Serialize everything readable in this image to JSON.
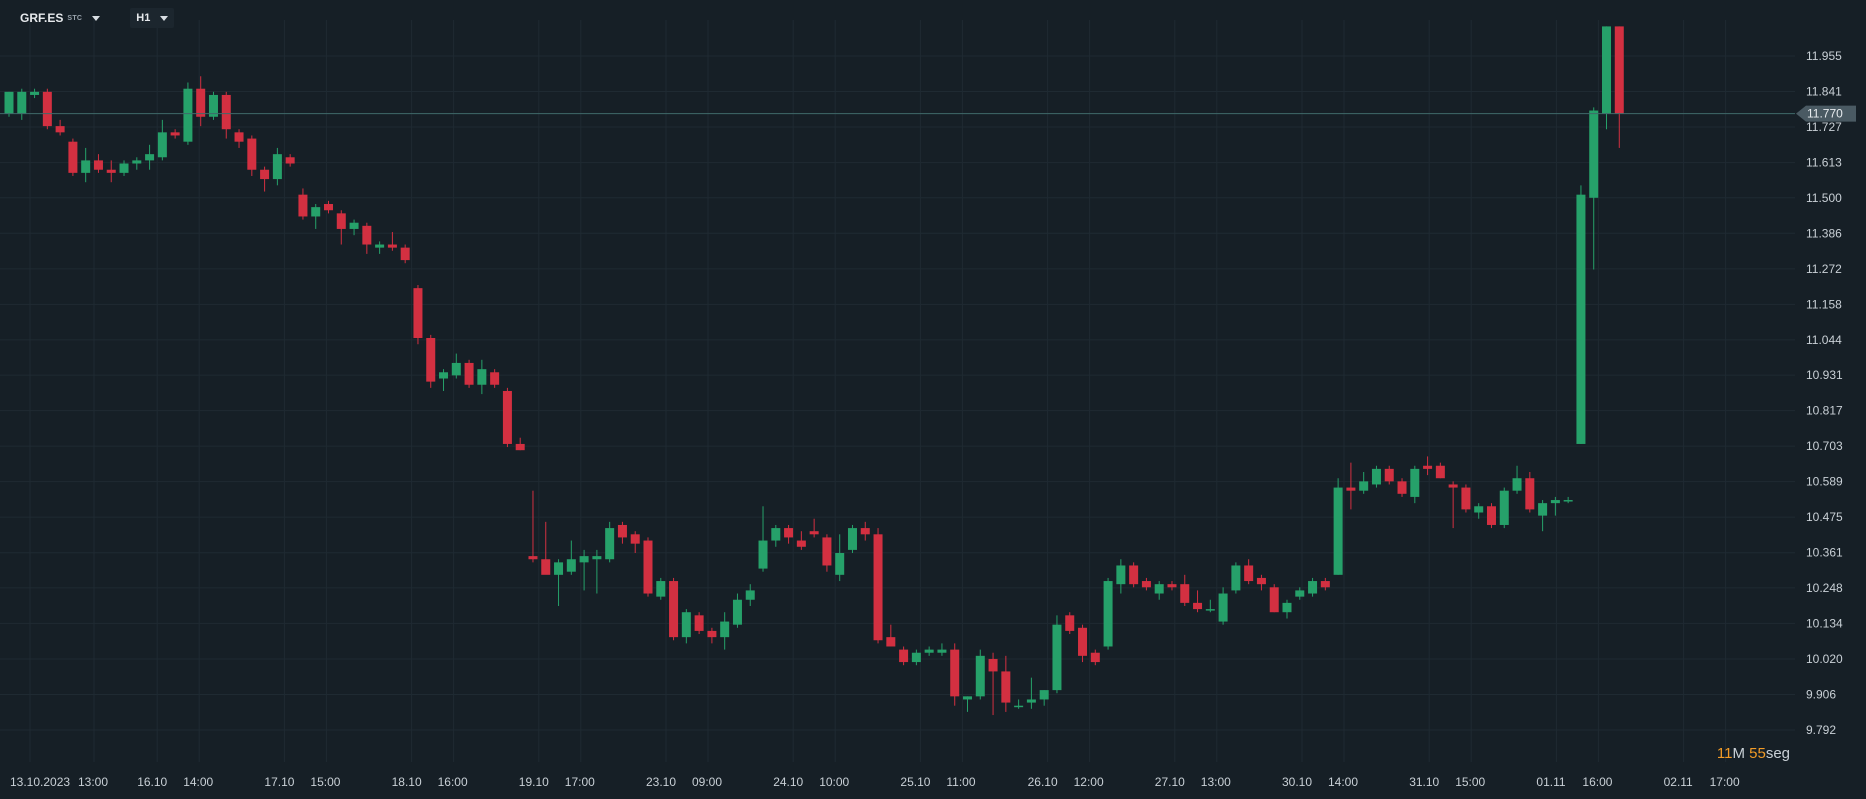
{
  "toolbar": {
    "symbol": "GRF.ES",
    "symbol_sub": "STC",
    "timeframe": "H1"
  },
  "timer": {
    "min": "11",
    "min_unit": "M",
    "sec": "55",
    "sec_unit": "seg"
  },
  "colors": {
    "up": "#26a16a",
    "down": "#d33041",
    "bg": "#161f26",
    "grid": "#1f2a32",
    "axis_text": "#c9d0d6"
  },
  "chart_data": {
    "type": "candlestick",
    "title": "",
    "xlabel": "",
    "ylabel": "",
    "ylim": [
      9.792,
      12.069
    ],
    "y_ticks": [
      "11.955",
      "11.841",
      "11.727",
      "11.613",
      "11.500",
      "11.386",
      "11.272",
      "11.158",
      "11.044",
      "10.931",
      "10.817",
      "10.703",
      "10.589",
      "10.475",
      "10.361",
      "10.248",
      "10.134",
      "10.020",
      "9.906",
      "9.792"
    ],
    "x_labels": [
      "13.10.2023",
      "13:00",
      "16.10",
      "14:00",
      "17.10",
      "15:00",
      "18.10",
      "16:00",
      "19.10",
      "17:00",
      "23.10",
      "09:00",
      "24.10",
      "10:00",
      "25.10",
      "11:00",
      "26.10",
      "12:00",
      "27.10",
      "13:00",
      "30.10",
      "14:00",
      "31.10",
      "15:00",
      "01.11",
      "16:00",
      "02.11",
      "17:00"
    ],
    "current_price": "11.770",
    "candles": [
      {
        "o": 11.77,
        "h": 11.84,
        "l": 11.76,
        "c": 11.84
      },
      {
        "o": 11.77,
        "h": 11.85,
        "l": 11.75,
        "c": 11.84
      },
      {
        "o": 11.83,
        "h": 11.85,
        "l": 11.82,
        "c": 11.84
      },
      {
        "o": 11.84,
        "h": 11.85,
        "l": 11.72,
        "c": 11.73
      },
      {
        "o": 11.73,
        "h": 11.75,
        "l": 11.7,
        "c": 11.71
      },
      {
        "o": 11.68,
        "h": 11.69,
        "l": 11.57,
        "c": 11.58
      },
      {
        "o": 11.58,
        "h": 11.66,
        "l": 11.55,
        "c": 11.62
      },
      {
        "o": 11.62,
        "h": 11.64,
        "l": 11.58,
        "c": 11.59
      },
      {
        "o": 11.59,
        "h": 11.62,
        "l": 11.55,
        "c": 11.58
      },
      {
        "o": 11.58,
        "h": 11.62,
        "l": 11.57,
        "c": 11.61
      },
      {
        "o": 11.61,
        "h": 11.63,
        "l": 11.59,
        "c": 11.62
      },
      {
        "o": 11.62,
        "h": 11.67,
        "l": 11.59,
        "c": 11.64
      },
      {
        "o": 11.63,
        "h": 11.75,
        "l": 11.62,
        "c": 11.71
      },
      {
        "o": 11.71,
        "h": 11.72,
        "l": 11.69,
        "c": 11.7
      },
      {
        "o": 11.68,
        "h": 11.87,
        "l": 11.67,
        "c": 11.85
      },
      {
        "o": 11.85,
        "h": 11.89,
        "l": 11.73,
        "c": 11.76
      },
      {
        "o": 11.76,
        "h": 11.84,
        "l": 11.75,
        "c": 11.83
      },
      {
        "o": 11.83,
        "h": 11.84,
        "l": 11.69,
        "c": 11.72
      },
      {
        "o": 11.71,
        "h": 11.72,
        "l": 11.66,
        "c": 11.68
      },
      {
        "o": 11.69,
        "h": 11.7,
        "l": 11.57,
        "c": 11.59
      },
      {
        "o": 11.59,
        "h": 11.6,
        "l": 11.52,
        "c": 11.56
      },
      {
        "o": 11.56,
        "h": 11.66,
        "l": 11.54,
        "c": 11.64
      },
      {
        "o": 11.63,
        "h": 11.64,
        "l": 11.6,
        "c": 11.61
      },
      {
        "o": 11.51,
        "h": 11.53,
        "l": 11.43,
        "c": 11.44
      },
      {
        "o": 11.44,
        "h": 11.48,
        "l": 11.4,
        "c": 11.47
      },
      {
        "o": 11.48,
        "h": 11.49,
        "l": 11.45,
        "c": 11.46
      },
      {
        "o": 11.45,
        "h": 11.46,
        "l": 11.35,
        "c": 11.4
      },
      {
        "o": 11.4,
        "h": 11.43,
        "l": 11.38,
        "c": 11.42
      },
      {
        "o": 11.41,
        "h": 11.42,
        "l": 11.32,
        "c": 11.35
      },
      {
        "o": 11.34,
        "h": 11.36,
        "l": 11.32,
        "c": 11.35
      },
      {
        "o": 11.35,
        "h": 11.39,
        "l": 11.33,
        "c": 11.34
      },
      {
        "o": 11.34,
        "h": 11.35,
        "l": 11.29,
        "c": 11.3
      },
      {
        "o": 11.21,
        "h": 11.22,
        "l": 11.03,
        "c": 11.05
      },
      {
        "o": 11.05,
        "h": 11.06,
        "l": 10.89,
        "c": 10.91
      },
      {
        "o": 10.92,
        "h": 10.95,
        "l": 10.88,
        "c": 10.94
      },
      {
        "o": 10.93,
        "h": 11.0,
        "l": 10.92,
        "c": 10.97
      },
      {
        "o": 10.97,
        "h": 10.98,
        "l": 10.89,
        "c": 10.9
      },
      {
        "o": 10.9,
        "h": 10.98,
        "l": 10.87,
        "c": 10.95
      },
      {
        "o": 10.94,
        "h": 10.95,
        "l": 10.89,
        "c": 10.9
      },
      {
        "o": 10.88,
        "h": 10.89,
        "l": 10.7,
        "c": 10.71
      },
      {
        "o": 10.71,
        "h": 10.73,
        "l": 10.69,
        "c": 10.69
      },
      {
        "o": 10.35,
        "h": 10.56,
        "l": 10.33,
        "c": 10.34
      },
      {
        "o": 10.34,
        "h": 10.46,
        "l": 10.3,
        "c": 10.29
      },
      {
        "o": 10.29,
        "h": 10.34,
        "l": 10.19,
        "c": 10.33
      },
      {
        "o": 10.3,
        "h": 10.4,
        "l": 10.29,
        "c": 10.34
      },
      {
        "o": 10.33,
        "h": 10.37,
        "l": 10.24,
        "c": 10.35
      },
      {
        "o": 10.34,
        "h": 10.37,
        "l": 10.23,
        "c": 10.35
      },
      {
        "o": 10.34,
        "h": 10.46,
        "l": 10.33,
        "c": 10.44
      },
      {
        "o": 10.45,
        "h": 10.46,
        "l": 10.39,
        "c": 10.41
      },
      {
        "o": 10.42,
        "h": 10.43,
        "l": 10.36,
        "c": 10.39
      },
      {
        "o": 10.4,
        "h": 10.41,
        "l": 10.22,
        "c": 10.23
      },
      {
        "o": 10.22,
        "h": 10.28,
        "l": 10.21,
        "c": 10.27
      },
      {
        "o": 10.27,
        "h": 10.28,
        "l": 10.08,
        "c": 10.09
      },
      {
        "o": 10.09,
        "h": 10.18,
        "l": 10.07,
        "c": 10.17
      },
      {
        "o": 10.16,
        "h": 10.17,
        "l": 10.1,
        "c": 10.11
      },
      {
        "o": 10.11,
        "h": 10.12,
        "l": 10.07,
        "c": 10.09
      },
      {
        "o": 10.09,
        "h": 10.17,
        "l": 10.05,
        "c": 10.14
      },
      {
        "o": 10.13,
        "h": 10.23,
        "l": 10.12,
        "c": 10.21
      },
      {
        "o": 10.21,
        "h": 10.26,
        "l": 10.19,
        "c": 10.24
      },
      {
        "o": 10.31,
        "h": 10.51,
        "l": 10.3,
        "c": 10.4
      },
      {
        "o": 10.4,
        "h": 10.45,
        "l": 10.38,
        "c": 10.44
      },
      {
        "o": 10.44,
        "h": 10.45,
        "l": 10.39,
        "c": 10.41
      },
      {
        "o": 10.4,
        "h": 10.43,
        "l": 10.37,
        "c": 10.38
      },
      {
        "o": 10.43,
        "h": 10.47,
        "l": 10.41,
        "c": 10.42
      },
      {
        "o": 10.41,
        "h": 10.42,
        "l": 10.3,
        "c": 10.32
      },
      {
        "o": 10.29,
        "h": 10.42,
        "l": 10.27,
        "c": 10.36
      },
      {
        "o": 10.37,
        "h": 10.45,
        "l": 10.36,
        "c": 10.44
      },
      {
        "o": 10.44,
        "h": 10.46,
        "l": 10.4,
        "c": 10.42
      },
      {
        "o": 10.42,
        "h": 10.44,
        "l": 10.07,
        "c": 10.08
      },
      {
        "o": 10.09,
        "h": 10.13,
        "l": 10.06,
        "c": 10.06
      },
      {
        "o": 10.05,
        "h": 10.06,
        "l": 10.0,
        "c": 10.01
      },
      {
        "o": 10.01,
        "h": 10.05,
        "l": 10.0,
        "c": 10.04
      },
      {
        "o": 10.04,
        "h": 10.06,
        "l": 10.03,
        "c": 10.05
      },
      {
        "o": 10.04,
        "h": 10.07,
        "l": 10.03,
        "c": 10.05
      },
      {
        "o": 10.05,
        "h": 10.07,
        "l": 9.87,
        "c": 9.9
      },
      {
        "o": 9.89,
        "h": 9.9,
        "l": 9.85,
        "c": 9.9
      },
      {
        "o": 9.9,
        "h": 10.05,
        "l": 9.89,
        "c": 10.03
      },
      {
        "o": 10.02,
        "h": 10.04,
        "l": 9.84,
        "c": 9.98
      },
      {
        "o": 9.98,
        "h": 10.03,
        "l": 9.85,
        "c": 9.88
      },
      {
        "o": 9.87,
        "h": 9.89,
        "l": 9.86,
        "c": 9.87
      },
      {
        "o": 9.88,
        "h": 9.96,
        "l": 9.86,
        "c": 9.89
      },
      {
        "o": 9.89,
        "h": 9.92,
        "l": 9.87,
        "c": 9.92
      },
      {
        "o": 9.92,
        "h": 10.16,
        "l": 9.91,
        "c": 10.13
      },
      {
        "o": 10.16,
        "h": 10.17,
        "l": 10.1,
        "c": 10.11
      },
      {
        "o": 10.12,
        "h": 10.13,
        "l": 10.01,
        "c": 10.03
      },
      {
        "o": 10.04,
        "h": 10.05,
        "l": 10.0,
        "c": 10.01
      },
      {
        "o": 10.06,
        "h": 10.28,
        "l": 10.05,
        "c": 10.27
      },
      {
        "o": 10.26,
        "h": 10.34,
        "l": 10.23,
        "c": 10.32
      },
      {
        "o": 10.32,
        "h": 10.33,
        "l": 10.25,
        "c": 10.26
      },
      {
        "o": 10.27,
        "h": 10.28,
        "l": 10.24,
        "c": 10.25
      },
      {
        "o": 10.23,
        "h": 10.27,
        "l": 10.21,
        "c": 10.26
      },
      {
        "o": 10.26,
        "h": 10.27,
        "l": 10.24,
        "c": 10.25
      },
      {
        "o": 10.26,
        "h": 10.29,
        "l": 10.19,
        "c": 10.2
      },
      {
        "o": 10.2,
        "h": 10.24,
        "l": 10.17,
        "c": 10.18
      },
      {
        "o": 10.18,
        "h": 10.21,
        "l": 10.17,
        "c": 10.18
      },
      {
        "o": 10.14,
        "h": 10.25,
        "l": 10.13,
        "c": 10.23
      },
      {
        "o": 10.24,
        "h": 10.33,
        "l": 10.23,
        "c": 10.32
      },
      {
        "o": 10.32,
        "h": 10.34,
        "l": 10.26,
        "c": 10.27
      },
      {
        "o": 10.28,
        "h": 10.29,
        "l": 10.24,
        "c": 10.26
      },
      {
        "o": 10.25,
        "h": 10.26,
        "l": 10.17,
        "c": 10.17
      },
      {
        "o": 10.17,
        "h": 10.21,
        "l": 10.15,
        "c": 10.2
      },
      {
        "o": 10.22,
        "h": 10.25,
        "l": 10.21,
        "c": 10.24
      },
      {
        "o": 10.23,
        "h": 10.28,
        "l": 10.22,
        "c": 10.27
      },
      {
        "o": 10.27,
        "h": 10.28,
        "l": 10.24,
        "c": 10.25
      },
      {
        "o": 10.29,
        "h": 10.6,
        "l": 10.29,
        "c": 10.57
      },
      {
        "o": 10.57,
        "h": 10.65,
        "l": 10.5,
        "c": 10.56
      },
      {
        "o": 10.56,
        "h": 10.62,
        "l": 10.55,
        "c": 10.59
      },
      {
        "o": 10.58,
        "h": 10.64,
        "l": 10.57,
        "c": 10.63
      },
      {
        "o": 10.63,
        "h": 10.64,
        "l": 10.58,
        "c": 10.59
      },
      {
        "o": 10.59,
        "h": 10.6,
        "l": 10.54,
        "c": 10.55
      },
      {
        "o": 10.54,
        "h": 10.64,
        "l": 10.52,
        "c": 10.63
      },
      {
        "o": 10.64,
        "h": 10.67,
        "l": 10.61,
        "c": 10.63
      },
      {
        "o": 10.64,
        "h": 10.65,
        "l": 10.6,
        "c": 10.6
      },
      {
        "o": 10.58,
        "h": 10.59,
        "l": 10.44,
        "c": 10.57
      },
      {
        "o": 10.57,
        "h": 10.58,
        "l": 10.49,
        "c": 10.5
      },
      {
        "o": 10.49,
        "h": 10.52,
        "l": 10.47,
        "c": 10.51
      },
      {
        "o": 10.51,
        "h": 10.52,
        "l": 10.44,
        "c": 10.45
      },
      {
        "o": 10.45,
        "h": 10.57,
        "l": 10.44,
        "c": 10.56
      },
      {
        "o": 10.56,
        "h": 10.64,
        "l": 10.55,
        "c": 10.6
      },
      {
        "o": 10.6,
        "h": 10.62,
        "l": 10.49,
        "c": 10.5
      },
      {
        "o": 10.48,
        "h": 10.53,
        "l": 10.43,
        "c": 10.52
      },
      {
        "o": 10.52,
        "h": 10.54,
        "l": 10.48,
        "c": 10.53
      },
      {
        "o": 10.53,
        "h": 10.54,
        "l": 10.52,
        "c": 10.53
      },
      {
        "o": 10.71,
        "h": 11.54,
        "l": 10.71,
        "c": 11.51
      },
      {
        "o": 11.5,
        "h": 11.79,
        "l": 11.27,
        "c": 11.78
      },
      {
        "o": 11.77,
        "h": 12.05,
        "l": 11.72,
        "c": 12.05
      },
      {
        "o": 12.05,
        "h": 12.05,
        "l": 11.66,
        "c": 11.77
      }
    ]
  }
}
